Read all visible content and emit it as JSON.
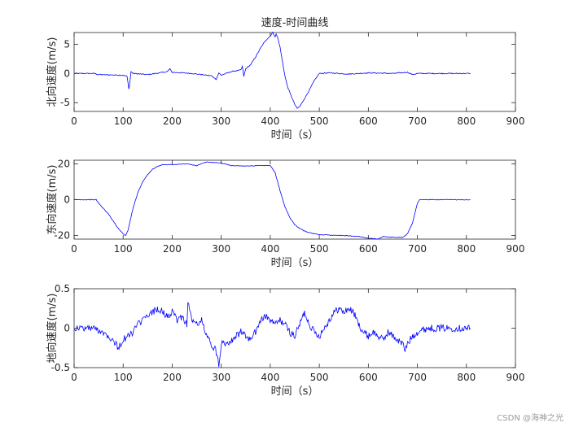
{
  "watermark": "CSDN @海神之光",
  "chart_data": [
    {
      "type": "line",
      "title": "速度-时间曲线",
      "xlabel": "时间（s）",
      "ylabel": "北向速度(m/s)",
      "xlim": [
        0,
        900
      ],
      "ylim": [
        -6.5,
        7
      ],
      "xticks": [
        0,
        100,
        200,
        300,
        400,
        500,
        600,
        700,
        800,
        900
      ],
      "yticks": [
        -5,
        0,
        5
      ],
      "color": "#0000ff",
      "series": [
        {
          "x": [
            0,
            40,
            50,
            100,
            108,
            112,
            114,
            116,
            120,
            150,
            190,
            195,
            200,
            240,
            280,
            290,
            295,
            300,
            320,
            340,
            343,
            346,
            350,
            360,
            370,
            380,
            390,
            400,
            405,
            410,
            412,
            415,
            420,
            425,
            430,
            435,
            440,
            445,
            450,
            455,
            460,
            465,
            470,
            480,
            490,
            500,
            520,
            560,
            600,
            650,
            680,
            690,
            700,
            720,
            750,
            808
          ],
          "y": [
            0,
            0,
            -0.2,
            -0.3,
            -0.5,
            -2.7,
            -1.2,
            0.3,
            0,
            -0.2,
            0.3,
            0.8,
            0.2,
            0,
            -0.4,
            -1,
            0.1,
            -0.3,
            0.3,
            0.6,
            1.2,
            -0.5,
            0.8,
            1.5,
            2.8,
            4.3,
            5.6,
            6.4,
            7,
            6.3,
            6.7,
            6.2,
            4.5,
            2,
            -0.5,
            -2.2,
            -3.3,
            -4.3,
            -5.3,
            -6,
            -5.7,
            -5,
            -4.3,
            -2.8,
            -1.2,
            0,
            0.1,
            -0.1,
            0.1,
            0,
            0.2,
            -0.2,
            0,
            0,
            0,
            0
          ]
        }
      ]
    },
    {
      "type": "line",
      "title": "",
      "xlabel": "时间（s）",
      "ylabel": "东向速度(m/s)",
      "xlim": [
        0,
        900
      ],
      "ylim": [
        -22,
        22
      ],
      "xticks": [
        0,
        100,
        200,
        300,
        400,
        500,
        600,
        700,
        800,
        900
      ],
      "yticks": [
        -20,
        0,
        20
      ],
      "color": "#0000ff",
      "series": [
        {
          "x": [
            0,
            45,
            50,
            60,
            70,
            80,
            90,
            100,
            105,
            110,
            120,
            130,
            140,
            150,
            160,
            170,
            180,
            200,
            230,
            250,
            270,
            300,
            320,
            350,
            380,
            400,
            410,
            420,
            430,
            440,
            450,
            460,
            470,
            480,
            500,
            550,
            580,
            600,
            620,
            630,
            650,
            670,
            680,
            690,
            700,
            705,
            720,
            808
          ],
          "y": [
            0,
            0,
            -2,
            -5,
            -8,
            -12,
            -16,
            -19,
            -20,
            -17,
            -5,
            4,
            10,
            14,
            17,
            18.5,
            19.5,
            19.5,
            20,
            19,
            21,
            20.5,
            19,
            18.8,
            19,
            19,
            15,
            5,
            -4,
            -10,
            -14,
            -16,
            -17.5,
            -18.5,
            -19.5,
            -20,
            -20.5,
            -21.5,
            -22,
            -20.5,
            -21,
            -21,
            -19,
            -13,
            -2,
            0,
            0,
            0
          ]
        }
      ]
    },
    {
      "type": "line",
      "title": "",
      "xlabel": "时间（s）",
      "ylabel": "地向速度(m/s)",
      "xlim": [
        0,
        900
      ],
      "ylim": [
        -0.5,
        0.5
      ],
      "xticks": [
        0,
        100,
        200,
        300,
        400,
        500,
        600,
        700,
        800,
        900
      ],
      "yticks": [
        -0.5,
        0,
        0.5
      ],
      "color": "#0000ff",
      "series": [
        {
          "x": [
            0,
            40,
            60,
            80,
            90,
            95,
            100,
            110,
            120,
            130,
            140,
            150,
            160,
            170,
            180,
            190,
            200,
            210,
            220,
            230,
            232,
            240,
            250,
            260,
            270,
            280,
            290,
            295,
            300,
            305,
            310,
            320,
            330,
            340,
            350,
            360,
            370,
            380,
            390,
            400,
            410,
            420,
            430,
            440,
            450,
            460,
            470,
            480,
            490,
            500,
            510,
            520,
            530,
            540,
            550,
            560,
            570,
            580,
            590,
            600,
            610,
            620,
            630,
            640,
            650,
            660,
            670,
            675,
            680,
            690,
            700,
            720,
            750,
            808
          ],
          "y": [
            0,
            0,
            -0.05,
            -0.15,
            -0.25,
            -0.2,
            -0.15,
            -0.1,
            -0.05,
            0.05,
            0.1,
            0.15,
            0.2,
            0.25,
            0.2,
            0.15,
            0.2,
            0.1,
            0.15,
            0.05,
            0.35,
            0.1,
            0.05,
            0.1,
            -0.1,
            -0.2,
            -0.3,
            -0.45,
            -0.2,
            -0.15,
            -0.2,
            -0.15,
            -0.1,
            -0.05,
            -0.1,
            -0.15,
            -0.05,
            0.1,
            0.15,
            0.1,
            0.05,
            0.1,
            0.05,
            -0.05,
            -0.1,
            0.05,
            0.2,
            0.05,
            -0.05,
            -0.1,
            0,
            0.1,
            0.2,
            0.25,
            0.2,
            0.25,
            0.2,
            0.05,
            -0.05,
            -0.1,
            -0.05,
            -0.1,
            -0.15,
            -0.05,
            -0.1,
            -0.15,
            -0.2,
            -0.28,
            -0.2,
            -0.1,
            -0.05,
            0,
            0,
            0
          ]
        }
      ]
    }
  ]
}
